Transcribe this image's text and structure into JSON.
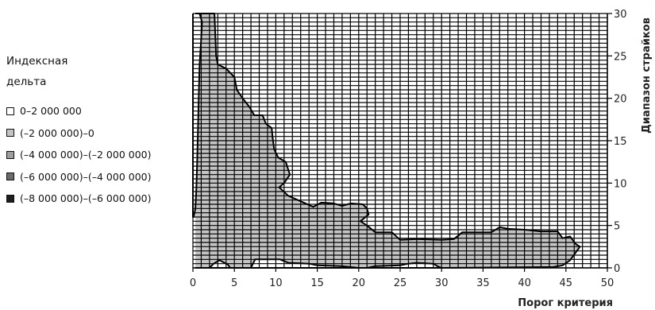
{
  "chart_data": {
    "type": "heatmap",
    "xlabel": "Порог критерия",
    "ylabel": "Диапазон страйков",
    "xlim": [
      0,
      50
    ],
    "ylim": [
      0,
      30
    ],
    "x_ticks": [
      0,
      5,
      10,
      15,
      20,
      25,
      30,
      35,
      40,
      45,
      50
    ],
    "y_ticks": [
      0,
      5,
      10,
      15,
      20,
      25,
      30
    ],
    "x_tick_labels": [
      "0",
      "5",
      "10",
      "15",
      "20",
      "25",
      "30",
      "35",
      "40",
      "45",
      "50"
    ],
    "y_tick_labels": [
      "0",
      "5",
      "10",
      "15",
      "20",
      "25",
      "30"
    ],
    "grid": true,
    "legend": {
      "title_lines": [
        "Индексная",
        "дельта"
      ],
      "placement": "left",
      "items": [
        {
          "label": "0–2 000 000",
          "color": "#ffffff"
        },
        {
          "label": "(–2 000 000)–0",
          "color": "#c4c4c4"
        },
        {
          "label": "(–4 000 000)–(–2 000 000)",
          "color": "#9e9e9e"
        },
        {
          "label": "(–6 000 000)–(–4 000 000)",
          "color": "#6b6b6b"
        },
        {
          "label": "(–8 000 000)–(–6 000 000)",
          "color": "#1e1e1e"
        }
      ]
    },
    "regions": [
      {
        "class": "(–2 000 000)–0",
        "color": "#c4c4c4",
        "boundary": [
          [
            0.3,
            30
          ],
          [
            2.6,
            30
          ],
          [
            2.8,
            25
          ],
          [
            3.0,
            24
          ],
          [
            4.0,
            23.5
          ],
          [
            5.0,
            22.5
          ],
          [
            5.3,
            21
          ],
          [
            6.0,
            20
          ],
          [
            6.8,
            19
          ],
          [
            7.4,
            18
          ],
          [
            8.4,
            18
          ],
          [
            8.8,
            17
          ],
          [
            9.5,
            16.5
          ],
          [
            9.6,
            15.5
          ],
          [
            9.8,
            14
          ],
          [
            10.3,
            13
          ],
          [
            11.2,
            12.5
          ],
          [
            11.7,
            11
          ],
          [
            11.0,
            10
          ],
          [
            10.4,
            9.5
          ],
          [
            11.5,
            8.5
          ],
          [
            14.5,
            7.2
          ],
          [
            15.5,
            7.7
          ],
          [
            17.0,
            7.6
          ],
          [
            18.0,
            7.3
          ],
          [
            19.0,
            7.6
          ],
          [
            20.5,
            7.5
          ],
          [
            21.0,
            7.0
          ],
          [
            21.2,
            6.3
          ],
          [
            20.2,
            5.5
          ],
          [
            21.0,
            5.0
          ],
          [
            22.0,
            4.2
          ],
          [
            24.0,
            4.2
          ],
          [
            25.0,
            3.3
          ],
          [
            27.0,
            3.4
          ],
          [
            30.0,
            3.3
          ],
          [
            31.5,
            3.4
          ],
          [
            32.5,
            4.2
          ],
          [
            36.0,
            4.2
          ],
          [
            37.0,
            4.8
          ],
          [
            38.0,
            4.6
          ],
          [
            40.0,
            4.5
          ],
          [
            42.0,
            4.3
          ],
          [
            44.0,
            4.3
          ],
          [
            44.6,
            3.5
          ],
          [
            45.5,
            3.7
          ],
          [
            46.2,
            2.8
          ],
          [
            46.7,
            2.5
          ],
          [
            45.5,
            0.9
          ],
          [
            44.6,
            0.3
          ],
          [
            43.5,
            0.1
          ],
          [
            30.0,
            0
          ],
          [
            2.0,
            0
          ],
          [
            0.3,
            0
          ]
        ]
      },
      {
        "class": "0–2 000 000",
        "color": "#ffffff",
        "boundary": [
          [
            0.8,
            30
          ],
          [
            1.1,
            29
          ],
          [
            1.0,
            27
          ],
          [
            0.8,
            24
          ],
          [
            0.7,
            20
          ],
          [
            0.6,
            16
          ],
          [
            0.5,
            12
          ],
          [
            0.4,
            9
          ],
          [
            0.3,
            7
          ],
          [
            0.1,
            6
          ],
          [
            0,
            6
          ],
          [
            0,
            30
          ]
        ]
      },
      {
        "class": "0–2 000 000",
        "color": "#ffffff",
        "boundary": [
          [
            2.0,
            0
          ],
          [
            2.5,
            0.5
          ],
          [
            3.2,
            0.9
          ],
          [
            4.2,
            0.4
          ],
          [
            4.5,
            0
          ]
        ]
      },
      {
        "class": "0–2 000 000",
        "color": "#ffffff",
        "boundary": [
          [
            7.0,
            0
          ],
          [
            7.5,
            1.0
          ],
          [
            10.5,
            1.0
          ],
          [
            11.5,
            0.6
          ],
          [
            14.0,
            0.5
          ],
          [
            15.0,
            0.3
          ],
          [
            18.0,
            0.2
          ],
          [
            20.0,
            0
          ]
        ]
      },
      {
        "class": "0–2 000 000",
        "color": "#ffffff",
        "boundary": [
          [
            21.0,
            0
          ],
          [
            22.0,
            0.2
          ],
          [
            25.0,
            0.3
          ],
          [
            26.0,
            0.5
          ],
          [
            27.0,
            0.6
          ],
          [
            29.0,
            0.5
          ],
          [
            29.5,
            0.2
          ],
          [
            30.0,
            0
          ]
        ]
      }
    ]
  }
}
